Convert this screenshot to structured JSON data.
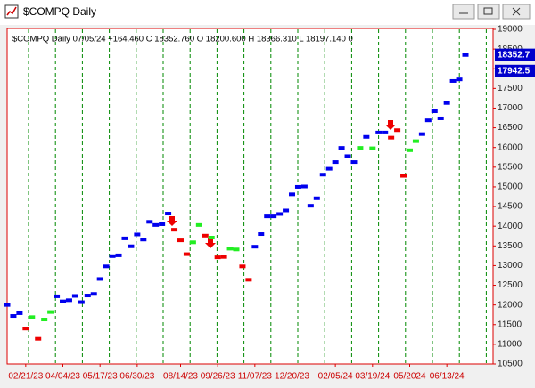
{
  "window_title": "$COMPQ  Daily",
  "chart_data": {
    "type": "dots",
    "info": "$COMPQ  Daily 07/05/24 +164.460 C 18352.760 O 18200.600 H 18366.310 L 18197.140 0",
    "categories": [
      null,
      null,
      null,
      "02/21/23",
      null,
      null,
      null,
      null,
      null,
      "04/04/23",
      null,
      null,
      null,
      null,
      null,
      "05/17/23",
      null,
      null,
      null,
      null,
      null,
      "06/30/23",
      null,
      null,
      null,
      null,
      null,
      null,
      "08/14/23",
      null,
      null,
      null,
      null,
      null,
      "09/26/23",
      null,
      null,
      null,
      null,
      null,
      "11/07/23",
      null,
      null,
      null,
      null,
      null,
      "12/20/23",
      null,
      null,
      null,
      null,
      null,
      null,
      "02/05/24",
      null,
      null,
      null,
      null,
      null,
      "03/19/24",
      null,
      null,
      null,
      null,
      null,
      "05/2024",
      null,
      null,
      null,
      null,
      null,
      "06/13/24",
      null,
      null,
      null
    ],
    "values": [
      12000,
      11720,
      11790,
      11400,
      11690,
      11140,
      11630,
      11820,
      12220,
      12090,
      12120,
      12230,
      12070,
      12240,
      12280,
      12660,
      12980,
      13240,
      13260,
      13690,
      13490,
      13790,
      13660,
      14110,
      14030,
      14050,
      14320,
      13910,
      13640,
      13290,
      13590,
      14030,
      13760,
      13710,
      13210,
      13220,
      13430,
      13410,
      12980,
      12640,
      13480,
      13800,
      14250,
      14250,
      14310,
      14400,
      14810,
      15000,
      15010,
      14520,
      14710,
      15310,
      15460,
      15630,
      15990,
      15780,
      15630,
      15990,
      16270,
      15980,
      16380,
      16380,
      16250,
      16440,
      15280,
      15930,
      16160,
      16340,
      16690,
      16920,
      16740,
      17130,
      17690,
      17730,
      18350
    ],
    "colors": [
      "#0000ee",
      "#0000ee",
      "#0000ee",
      "#ee0000",
      "#22ee22",
      "#ee0000",
      "#22ee22",
      "#22ee22",
      "#0000ee",
      "#0000ee",
      "#0000ee",
      "#0000ee",
      "#0000ee",
      "#0000ee",
      "#0000ee",
      "#0000ee",
      "#0000ee",
      "#0000ee",
      "#0000ee",
      "#0000ee",
      "#0000ee",
      "#0000ee",
      "#0000ee",
      "#0000ee",
      "#0000ee",
      "#0000ee",
      "#0000ee",
      "#ee0000",
      "#ee0000",
      "#ee0000",
      "#22ee22",
      "#22ee22",
      "#ee0000",
      "#22ee22",
      "#ee0000",
      "#ee0000",
      "#22ee22",
      "#22ee22",
      "#ee0000",
      "#ee0000",
      "#0000ee",
      "#0000ee",
      "#0000ee",
      "#0000ee",
      "#0000ee",
      "#0000ee",
      "#0000ee",
      "#0000ee",
      "#0000ee",
      "#0000ee",
      "#0000ee",
      "#0000ee",
      "#0000ee",
      "#0000ee",
      "#0000ee",
      "#0000ee",
      "#0000ee",
      "#22ee22",
      "#0000ee",
      "#22ee22",
      "#0000ee",
      "#0000ee",
      "#ee0000",
      "#ee0000",
      "#ee0000",
      "#22ee22",
      "#22ee22",
      "#0000ee",
      "#0000ee",
      "#0000ee",
      "#0000ee",
      "#0000ee",
      "#0000ee",
      "#0000ee",
      "#0000ee"
    ],
    "ylim": [
      10500,
      19000
    ],
    "yticks": [
      10500,
      11000,
      11500,
      12000,
      12500,
      13000,
      13500,
      14000,
      14500,
      15000,
      15500,
      16000,
      16500,
      17000,
      17500,
      18000,
      18500,
      19000
    ],
    "price_tags": [
      18352.7,
      17942.5
    ],
    "grid_color": "#008800"
  }
}
